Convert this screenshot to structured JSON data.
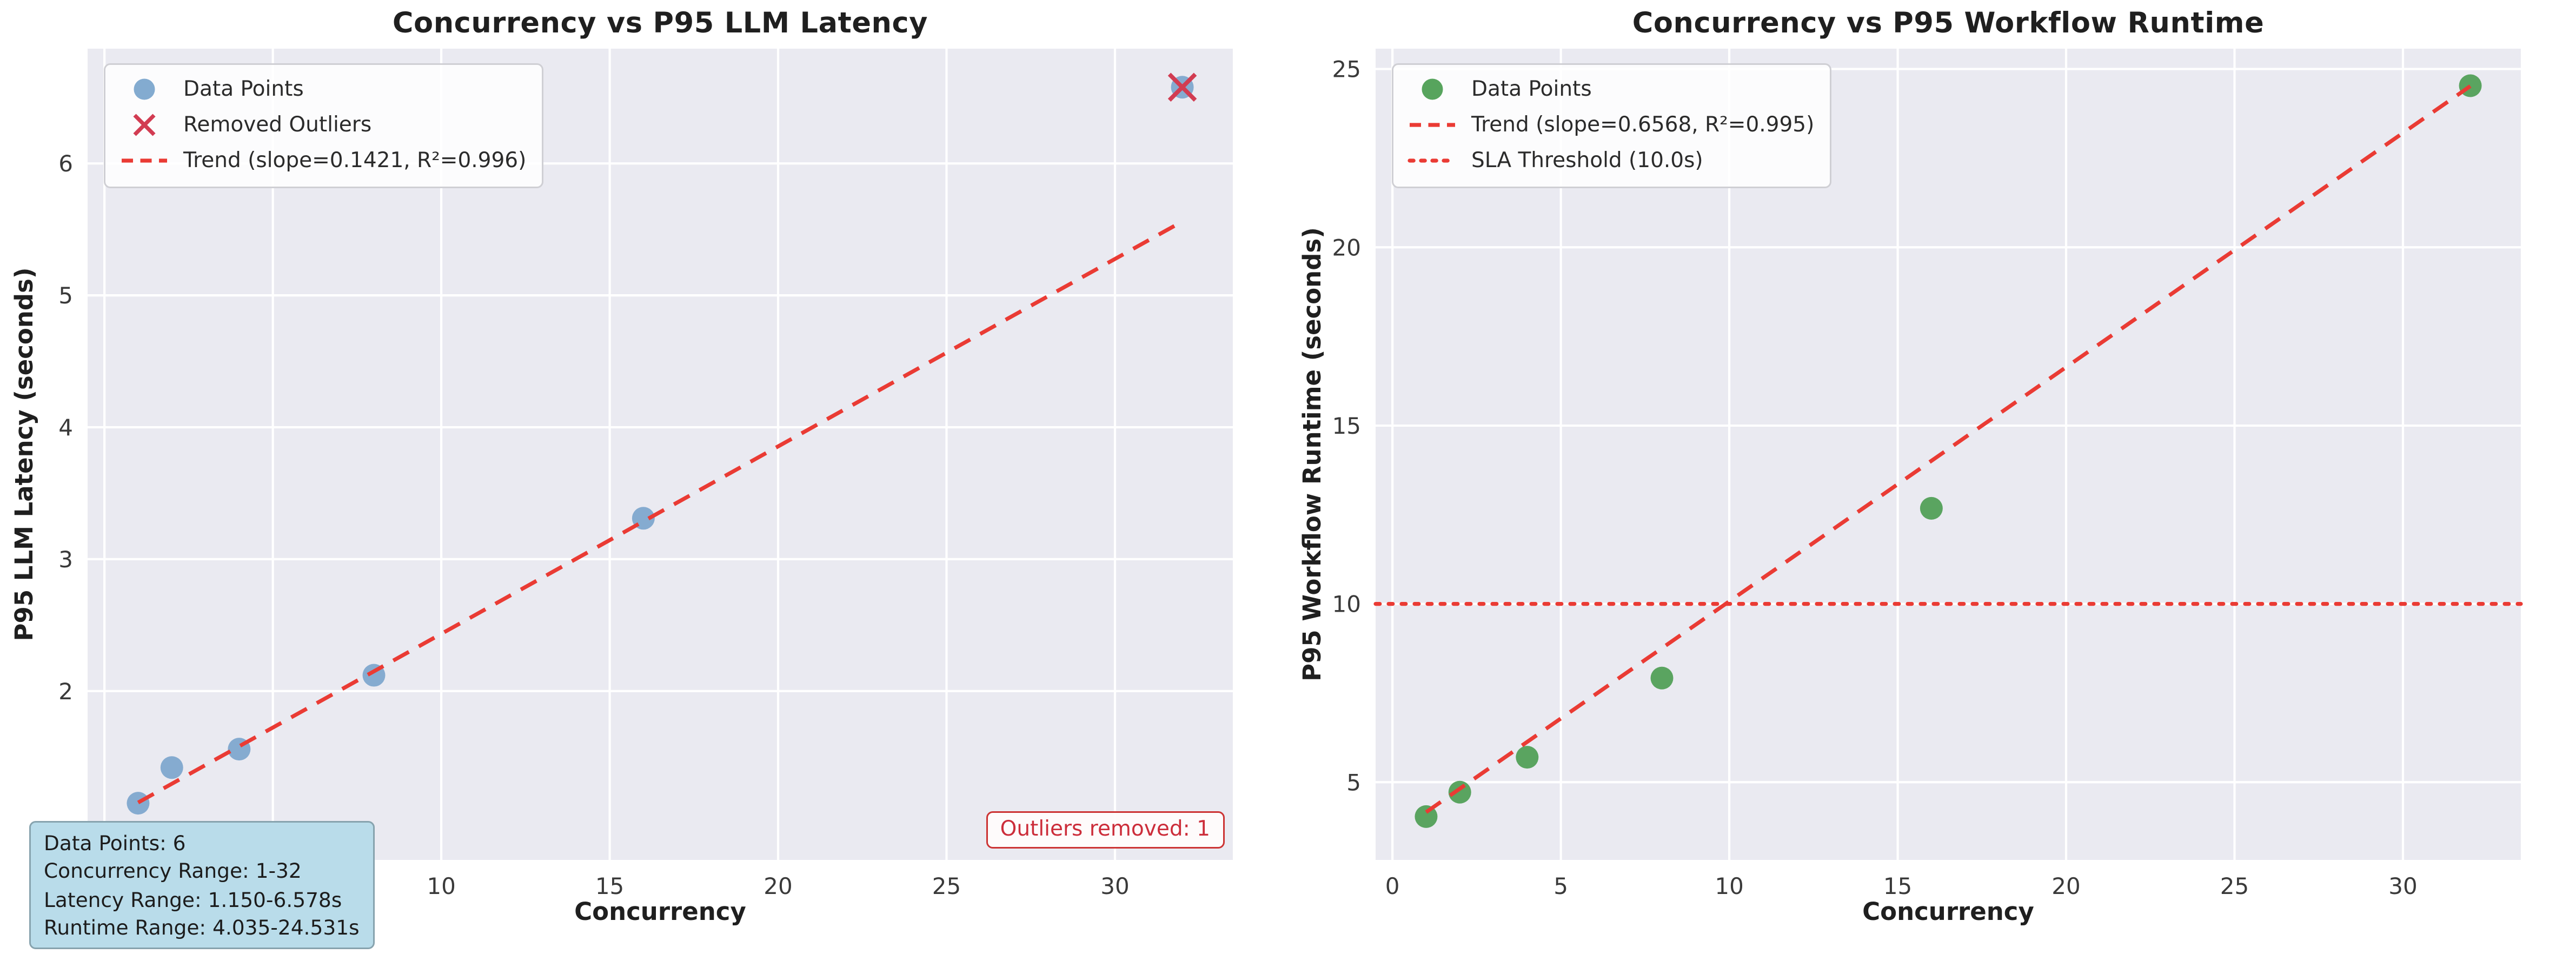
{
  "figure": {
    "background": "#ffffff",
    "axes_background": "#eaeaf1",
    "grid_color": "#ffffff",
    "tick_color": "#3a3a3a",
    "trend_color": "#ea3b34"
  },
  "chart_data": [
    {
      "type": "scatter",
      "title": "Concurrency vs P95 LLM Latency",
      "xlabel": "Concurrency",
      "ylabel": "P95 LLM Latency (seconds)",
      "xlim": [
        -0.5,
        33.5
      ],
      "ylim": [
        0.72,
        6.87
      ],
      "xticks": [
        0,
        5,
        10,
        15,
        20,
        25,
        30
      ],
      "yticks": [
        2,
        3,
        4,
        5,
        6
      ],
      "grid": true,
      "legend_position": "upper left",
      "series": [
        {
          "name": "Data Points",
          "marker": "circle",
          "color": "#76a2cb",
          "x": [
            1,
            2,
            4,
            8,
            16,
            32
          ],
          "y": [
            1.15,
            1.42,
            1.56,
            2.12,
            3.31,
            6.578
          ]
        },
        {
          "name": "Removed Outliers",
          "marker": "x",
          "color": "#d23c52",
          "x": [
            32
          ],
          "y": [
            6.578
          ]
        },
        {
          "name": "Trend (slope=0.1421, R²=0.996)",
          "marker": "dashed-line",
          "color": "#ea3b34",
          "x": [
            1,
            32
          ],
          "y": [
            1.155,
            5.56
          ]
        }
      ],
      "annotation": "Outliers removed: 1",
      "info_lines": [
        "Data Points: 6",
        "Concurrency Range: 1-32",
        "Latency Range: 1.150-6.578s",
        "Runtime Range: 4.035-24.531s"
      ]
    },
    {
      "type": "scatter",
      "title": "Concurrency vs P95 Workflow Runtime",
      "xlabel": "Concurrency",
      "ylabel": "P95 Workflow Runtime (seconds)",
      "xlim": [
        -0.5,
        33.5
      ],
      "ylim": [
        2.82,
        25.57
      ],
      "xticks": [
        0,
        5,
        10,
        15,
        20,
        25,
        30
      ],
      "yticks": [
        5,
        10,
        15,
        20,
        25
      ],
      "grid": true,
      "legend_position": "upper left",
      "series": [
        {
          "name": "Data Points",
          "marker": "circle",
          "color": "#459a4b",
          "x": [
            1,
            2,
            4,
            8,
            16,
            32
          ],
          "y": [
            4.035,
            4.72,
            5.7,
            7.92,
            12.68,
            24.531
          ]
        },
        {
          "name": "Trend (slope=0.6568, R²=0.995)",
          "marker": "dashed-line",
          "color": "#ea3b34",
          "x": [
            1,
            32
          ],
          "y": [
            4.16,
            24.52
          ]
        },
        {
          "name": "SLA Threshold (10.0s)",
          "marker": "dotted-line",
          "color": "#ea3b34",
          "x": [
            -0.5,
            33.5
          ],
          "y": [
            10,
            10
          ]
        }
      ]
    }
  ]
}
